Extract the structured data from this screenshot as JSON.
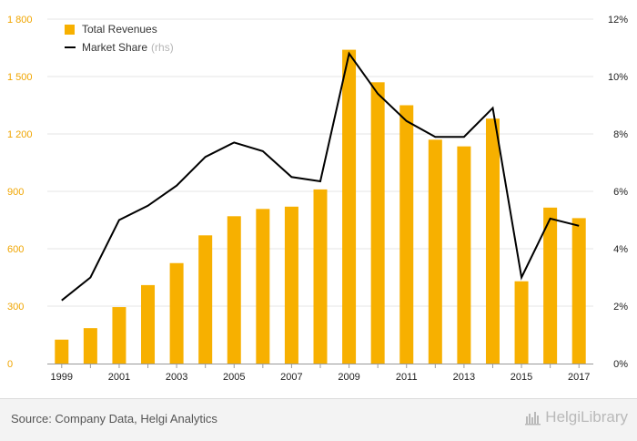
{
  "chart_data": {
    "type": "bar",
    "x_ticks_shown": [
      "1999",
      "2001",
      "2003",
      "2005",
      "2007",
      "2009",
      "2011",
      "2013",
      "2015",
      "2017"
    ],
    "categories": [
      "1999",
      "2000",
      "2001",
      "2002",
      "2003",
      "2004",
      "2005",
      "2006",
      "2007",
      "2008",
      "2009",
      "2010",
      "2011",
      "2012",
      "2013",
      "2014",
      "2015",
      "2016",
      "2017"
    ],
    "series": [
      {
        "name": "Total Revenues",
        "type": "bar",
        "axis": "left",
        "values": [
          125,
          185,
          295,
          410,
          525,
          670,
          770,
          808,
          820,
          910,
          1640,
          1470,
          1350,
          1170,
          1135,
          1280,
          430,
          815,
          760
        ]
      },
      {
        "name": "Market Share",
        "name_suffix": "(rhs)",
        "type": "line",
        "axis": "right",
        "values": [
          2.2,
          3.0,
          5.0,
          5.5,
          6.2,
          7.2,
          7.7,
          7.4,
          6.5,
          6.35,
          10.8,
          9.4,
          8.45,
          7.9,
          7.9,
          8.9,
          3.0,
          5.05,
          4.8
        ]
      }
    ],
    "y_left": {
      "ticks": [
        "0",
        "300",
        "600",
        "900",
        "1 200",
        "1 500",
        "1 800"
      ],
      "ylim": [
        0,
        1800
      ]
    },
    "y_right": {
      "ticks": [
        "0%",
        "2%",
        "4%",
        "6%",
        "8%",
        "10%",
        "12%"
      ],
      "ylim": [
        0,
        12
      ]
    },
    "grid": true,
    "legend_position": "top-left",
    "colors": {
      "bar": "#f7b000",
      "line": "#000000",
      "left_axis_text": "#f0a500",
      "grid": "#e4e4e4"
    }
  },
  "footer": {
    "source": "Source: Company Data, Helgi Analytics",
    "brand_text": "HelgiLibrary",
    "brand_icon": "helgi-logo-icon"
  }
}
